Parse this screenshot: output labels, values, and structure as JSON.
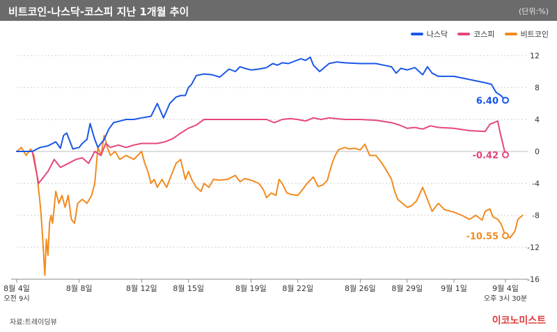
{
  "header": {
    "title": "비트코인-나스닥-코스피 지난 1개월 추이",
    "unit": "(단위:%)"
  },
  "footer": {
    "source": "자료:트레이딩뷰",
    "brand": "이코노미스트"
  },
  "colors": {
    "nasdaq": "#1a56e8",
    "kospi": "#e6457f",
    "bitcoin": "#f28a1e",
    "grid": "#cccccc",
    "axis": "#888888"
  },
  "chart_data": {
    "type": "line",
    "title": "비트코인-나스닥-코스피 지난 1개월 추이",
    "xlabel": "",
    "ylabel": "(단위:%)",
    "ylim": [
      -16,
      12
    ],
    "yticks": [
      "12",
      "8",
      "4",
      "0",
      "-4",
      "-8",
      "-12",
      "-16"
    ],
    "ytick_values": [
      12,
      8,
      4,
      0,
      -4,
      -8,
      -12,
      -16
    ],
    "grid": "horizontal",
    "legend_position": "top-right",
    "xlim": [
      0,
      31.3
    ],
    "xticks": [
      {
        "x": 0,
        "label": "8월 4일",
        "sublabel": "오전 9시"
      },
      {
        "x": 4,
        "label": "8월 8일"
      },
      {
        "x": 8,
        "label": "8월 12일"
      },
      {
        "x": 11,
        "label": "8월 15일"
      },
      {
        "x": 15,
        "label": "8월 19일"
      },
      {
        "x": 18,
        "label": "8월 22일"
      },
      {
        "x": 22,
        "label": "8월 26일"
      },
      {
        "x": 25,
        "label": "8월 29일"
      },
      {
        "x": 28,
        "label": "9월 1일"
      },
      {
        "x": 31.3,
        "label": "9월 4일",
        "sublabel": "오후 3시 30분"
      }
    ],
    "series": [
      {
        "name": "나스닥",
        "color": "#1a56e8",
        "end_label": "6.40",
        "points": [
          [
            0,
            0
          ],
          [
            1,
            0
          ],
          [
            1.5,
            0.5
          ],
          [
            2,
            0.7
          ],
          [
            2.5,
            1.2
          ],
          [
            2.8,
            0.4
          ],
          [
            3,
            2
          ],
          [
            3.2,
            2.3
          ],
          [
            3.6,
            0.3
          ],
          [
            4,
            0.5
          ],
          [
            4.2,
            1
          ],
          [
            4.5,
            1.5
          ],
          [
            4.7,
            3.5
          ],
          [
            5,
            1.5
          ],
          [
            5.2,
            0.5
          ],
          [
            5.6,
            1.5
          ],
          [
            5.9,
            2.8
          ],
          [
            6.2,
            3.6
          ],
          [
            6.6,
            3.8
          ],
          [
            7,
            4
          ],
          [
            7.5,
            4
          ],
          [
            8,
            4.2
          ],
          [
            8.3,
            4.3
          ],
          [
            8.6,
            4.4
          ],
          [
            9,
            6
          ],
          [
            9.4,
            4.2
          ],
          [
            9.8,
            6
          ],
          [
            10.2,
            6.8
          ],
          [
            10.5,
            7
          ],
          [
            10.8,
            7
          ],
          [
            11,
            8
          ],
          [
            11.2,
            8.4
          ],
          [
            11.5,
            9.5
          ],
          [
            12,
            9.7
          ],
          [
            12.5,
            9.6
          ],
          [
            13,
            9.3
          ],
          [
            13.3,
            9.8
          ],
          [
            13.6,
            10.3
          ],
          [
            14,
            10
          ],
          [
            14.3,
            10.6
          ],
          [
            14.6,
            10.4
          ],
          [
            15,
            10.2
          ],
          [
            15.5,
            10.3
          ],
          [
            16,
            10.5
          ],
          [
            16.4,
            11
          ],
          [
            16.7,
            10.8
          ],
          [
            17,
            11.1
          ],
          [
            17.4,
            11
          ],
          [
            17.8,
            11.3
          ],
          [
            18.2,
            11.6
          ],
          [
            18.5,
            11.4
          ],
          [
            18.8,
            11.8
          ],
          [
            19,
            10.8
          ],
          [
            19.4,
            10
          ],
          [
            19.7,
            10.5
          ],
          [
            20,
            11
          ],
          [
            20.5,
            11.2
          ],
          [
            21,
            11.1
          ],
          [
            22,
            11
          ],
          [
            23,
            11
          ],
          [
            23.5,
            10.8
          ],
          [
            24,
            10.6
          ],
          [
            24.3,
            9.8
          ],
          [
            24.6,
            10.4
          ],
          [
            25,
            10.2
          ],
          [
            25.5,
            10.5
          ],
          [
            26,
            9.6
          ],
          [
            26.3,
            10.6
          ],
          [
            26.6,
            9.8
          ],
          [
            27,
            9.4
          ],
          [
            27.5,
            9.4
          ],
          [
            28,
            9.4
          ],
          [
            29,
            9
          ],
          [
            30,
            8.6
          ],
          [
            30.4,
            8.4
          ],
          [
            30.7,
            7.4
          ],
          [
            31,
            7
          ],
          [
            31.3,
            6.4
          ]
        ]
      },
      {
        "name": "코스피",
        "color": "#e6457f",
        "end_label": "-0.42",
        "points": [
          [
            0,
            0
          ],
          [
            1,
            0
          ],
          [
            1.4,
            -4
          ],
          [
            2,
            -2.5
          ],
          [
            2.4,
            -1
          ],
          [
            2.8,
            -2
          ],
          [
            3.3,
            -1.5
          ],
          [
            3.8,
            -1
          ],
          [
            4.2,
            -0.8
          ],
          [
            4.6,
            -1.5
          ],
          [
            5,
            0
          ],
          [
            5.4,
            -0.5
          ],
          [
            5.7,
            1
          ],
          [
            6,
            0.5
          ],
          [
            6.5,
            0.8
          ],
          [
            7,
            0.5
          ],
          [
            7.5,
            0.8
          ],
          [
            8,
            1
          ],
          [
            8.5,
            1
          ],
          [
            9,
            1
          ],
          [
            9.5,
            1.2
          ],
          [
            10,
            1.6
          ],
          [
            10.5,
            2.3
          ],
          [
            11,
            2.9
          ],
          [
            11.5,
            3.3
          ],
          [
            12,
            4
          ],
          [
            12.5,
            4
          ],
          [
            13,
            4
          ],
          [
            14,
            4
          ],
          [
            15,
            4
          ],
          [
            16,
            4
          ],
          [
            16.5,
            3.6
          ],
          [
            17,
            4
          ],
          [
            17.5,
            4.1
          ],
          [
            18,
            4
          ],
          [
            18.5,
            3.8
          ],
          [
            19,
            4.2
          ],
          [
            19.5,
            4
          ],
          [
            20,
            4.2
          ],
          [
            21,
            4
          ],
          [
            22,
            4
          ],
          [
            23,
            3.9
          ],
          [
            24,
            3.6
          ],
          [
            24.5,
            3.3
          ],
          [
            25,
            2.9
          ],
          [
            25.5,
            3
          ],
          [
            26,
            2.8
          ],
          [
            26.5,
            3.2
          ],
          [
            27,
            3
          ],
          [
            28,
            2.9
          ],
          [
            29,
            2.6
          ],
          [
            30,
            2.5
          ],
          [
            30.3,
            3.4
          ],
          [
            30.8,
            3.8
          ],
          [
            31,
            2
          ],
          [
            31.3,
            -0.42
          ]
        ]
      },
      {
        "name": "비트코인",
        "color": "#f28a1e",
        "end_label": "-10.55",
        "points": [
          [
            0,
            0
          ],
          [
            0.3,
            0.5
          ],
          [
            0.6,
            -0.5
          ],
          [
            0.9,
            0.3
          ],
          [
            1.1,
            -0.5
          ],
          [
            1.3,
            -3
          ],
          [
            1.5,
            -6.5
          ],
          [
            1.6,
            -9
          ],
          [
            1.7,
            -12
          ],
          [
            1.8,
            -15.5
          ],
          [
            1.9,
            -11
          ],
          [
            2,
            -13
          ],
          [
            2.1,
            -9
          ],
          [
            2.2,
            -8
          ],
          [
            2.3,
            -9
          ],
          [
            2.5,
            -5
          ],
          [
            2.7,
            -6.5
          ],
          [
            2.9,
            -5.5
          ],
          [
            3.1,
            -7
          ],
          [
            3.3,
            -5.5
          ],
          [
            3.5,
            -8.5
          ],
          [
            3.7,
            -9
          ],
          [
            3.9,
            -6.5
          ],
          [
            4.2,
            -6
          ],
          [
            4.5,
            -6.5
          ],
          [
            4.8,
            -5.5
          ],
          [
            5,
            -4
          ],
          [
            5.2,
            0.5
          ],
          [
            5.4,
            -0.5
          ],
          [
            5.6,
            2
          ],
          [
            5.8,
            0.5
          ],
          [
            6,
            -0.5
          ],
          [
            6.3,
            0
          ],
          [
            6.6,
            -1
          ],
          [
            7,
            -0.5
          ],
          [
            7.5,
            -1
          ],
          [
            8,
            0
          ],
          [
            8.2,
            -1.5
          ],
          [
            8.4,
            -2.5
          ],
          [
            8.6,
            -4
          ],
          [
            8.8,
            -3.5
          ],
          [
            9,
            -4.5
          ],
          [
            9.3,
            -3.5
          ],
          [
            9.6,
            -4.5
          ],
          [
            9.8,
            -3.5
          ],
          [
            10.2,
            -1.5
          ],
          [
            10.5,
            -1
          ],
          [
            10.8,
            -3.5
          ],
          [
            11,
            -2.5
          ],
          [
            11.2,
            -3.5
          ],
          [
            11.5,
            -4.5
          ],
          [
            11.8,
            -5
          ],
          [
            12,
            -4
          ],
          [
            12.3,
            -4.5
          ],
          [
            12.6,
            -3.5
          ],
          [
            13,
            -3.6
          ],
          [
            13.5,
            -3.5
          ],
          [
            14,
            -3
          ],
          [
            14.3,
            -3.8
          ],
          [
            14.6,
            -3.4
          ],
          [
            15,
            -3.6
          ],
          [
            15.5,
            -4
          ],
          [
            15.8,
            -4.8
          ],
          [
            16,
            -5.8
          ],
          [
            16.3,
            -5.2
          ],
          [
            16.6,
            -5.5
          ],
          [
            16.8,
            -3.5
          ],
          [
            17,
            -4
          ],
          [
            17.3,
            -5.2
          ],
          [
            17.6,
            -5.4
          ],
          [
            18,
            -5.5
          ],
          [
            18.3,
            -4.8
          ],
          [
            18.6,
            -4
          ],
          [
            19,
            -3.2
          ],
          [
            19.3,
            -4.4
          ],
          [
            19.6,
            -4.2
          ],
          [
            19.9,
            -3.6
          ],
          [
            20,
            -2.8
          ],
          [
            20.2,
            -1.5
          ],
          [
            20.4,
            -0.5
          ],
          [
            20.6,
            0.2
          ],
          [
            21,
            0.5
          ],
          [
            21.3,
            0.3
          ],
          [
            21.6,
            0.4
          ],
          [
            22,
            0.2
          ],
          [
            22.3,
            0.9
          ],
          [
            22.6,
            -0.5
          ],
          [
            23,
            -0.5
          ],
          [
            23.4,
            -1.5
          ],
          [
            23.8,
            -2.8
          ],
          [
            24,
            -3.5
          ],
          [
            24.2,
            -5
          ],
          [
            24.4,
            -6
          ],
          [
            24.7,
            -6.5
          ],
          [
            25,
            -7
          ],
          [
            25.3,
            -6.8
          ],
          [
            25.6,
            -6.2
          ],
          [
            26,
            -4.5
          ],
          [
            26.3,
            -6
          ],
          [
            26.6,
            -7.5
          ],
          [
            27,
            -6.5
          ],
          [
            27.4,
            -7.3
          ],
          [
            27.8,
            -7.5
          ],
          [
            28,
            -7.6
          ],
          [
            28.5,
            -8
          ],
          [
            29,
            -8.5
          ],
          [
            29.4,
            -8
          ],
          [
            29.8,
            -8.6
          ],
          [
            30,
            -7.5
          ],
          [
            30.3,
            -7.2
          ],
          [
            30.5,
            -8.2
          ],
          [
            30.8,
            -8.5
          ],
          [
            31,
            -9
          ],
          [
            31.3,
            -10.55
          ],
          [
            31.6,
            -10.8
          ],
          [
            31.9,
            -10
          ],
          [
            32.1,
            -8.5
          ],
          [
            32.4,
            -8
          ]
        ]
      }
    ]
  }
}
